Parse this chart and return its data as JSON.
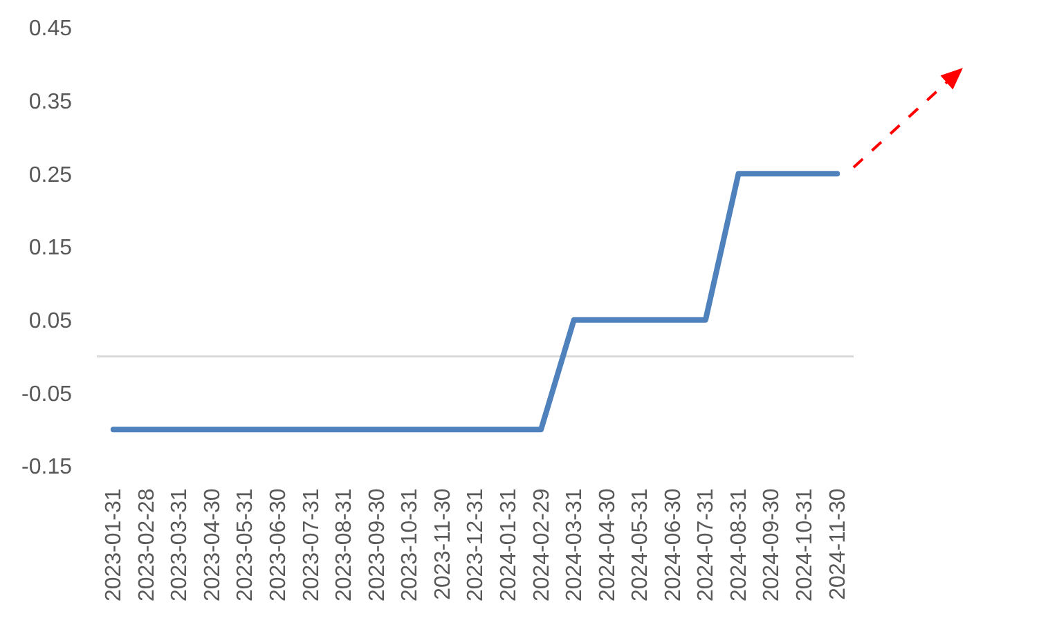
{
  "chart_data": {
    "type": "line",
    "categories": [
      "2023-01-31",
      "2023-02-28",
      "2023-03-31",
      "2023-04-30",
      "2023-05-31",
      "2023-06-30",
      "2023-07-31",
      "2023-08-31",
      "2023-09-30",
      "2023-10-31",
      "2023-11-30",
      "2023-12-31",
      "2024-01-31",
      "2024-02-29",
      "2024-03-31",
      "2024-04-30",
      "2024-05-31",
      "2024-06-30",
      "2024-07-31",
      "2024-08-31",
      "2024-09-30",
      "2024-10-31",
      "2024-11-30"
    ],
    "series": [
      {
        "color": "#4f81bd",
        "values": [
          -0.1,
          -0.1,
          -0.1,
          -0.1,
          -0.1,
          -0.1,
          -0.1,
          -0.1,
          -0.1,
          -0.1,
          -0.1,
          -0.1,
          -0.1,
          -0.1,
          0.05,
          0.05,
          0.05,
          0.05,
          0.05,
          0.25,
          0.25,
          0.25,
          0.25
        ]
      }
    ],
    "ylim": [
      -0.15,
      0.45
    ],
    "yticks": [
      -0.15,
      -0.05,
      0.05,
      0.15,
      0.25,
      0.35,
      0.45
    ],
    "marker": "none",
    "line_style": "solid"
  }
}
